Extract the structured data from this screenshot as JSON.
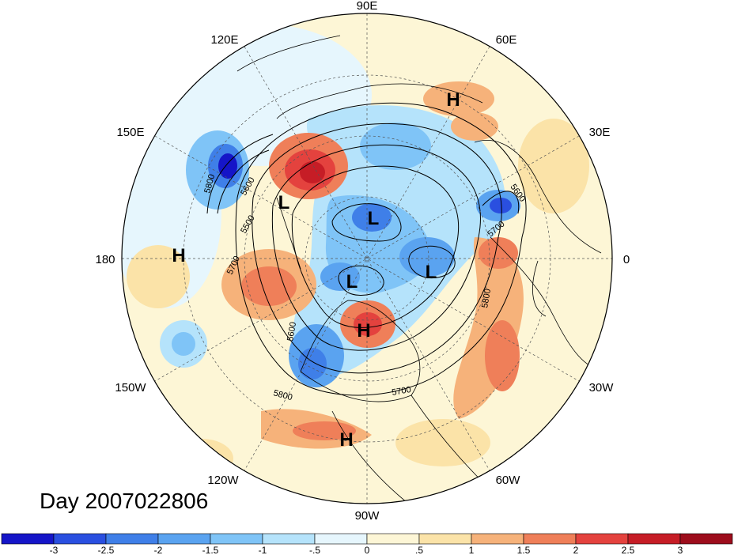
{
  "title": "Day 2007022806",
  "lon_labels": {
    "e90": "90E",
    "e120": "120E",
    "e60": "60E",
    "e150": "150E",
    "e30": "30E",
    "d180": "180",
    "zero": "0",
    "w150": "150W",
    "w30": "30W",
    "w120": "120W",
    "w60": "60W",
    "w90": "90W"
  },
  "systems": [
    {
      "name": "high-pressure-label-europe",
      "text": "H"
    },
    {
      "name": "low-pressure-label-kamchatka",
      "text": "L"
    },
    {
      "name": "low-pressure-label-arctic",
      "text": "L"
    },
    {
      "name": "low-pressure-label-canada",
      "text": "L"
    },
    {
      "name": "low-pressure-label-greenland",
      "text": "L"
    },
    {
      "name": "high-pressure-label-pacific",
      "text": "H"
    },
    {
      "name": "high-pressure-label-hudson",
      "text": "H"
    },
    {
      "name": "high-pressure-label-gulf",
      "text": "H"
    }
  ],
  "contour_labels": [
    "5800",
    "5600",
    "5500",
    "5700",
    "5600",
    "5800",
    "5700",
    "5800",
    "5600",
    "5700",
    "5800"
  ],
  "colorbar": {
    "ticks": [
      "-3",
      "-2.5",
      "-2",
      "-1.5",
      "-1",
      "-.5",
      "0",
      ".5",
      "1",
      "1.5",
      "2",
      "2.5",
      "3"
    ],
    "colors": [
      "#1515c8",
      "#2a4fe0",
      "#3f7fe8",
      "#5aa3f0",
      "#7fc4f7",
      "#b5e3fb",
      "#e6f6fd",
      "#fdf6d6",
      "#fbe3a8",
      "#f6b27a",
      "#ef7f59",
      "#e4423e",
      "#c61d26",
      "#9d0d1c"
    ]
  }
}
